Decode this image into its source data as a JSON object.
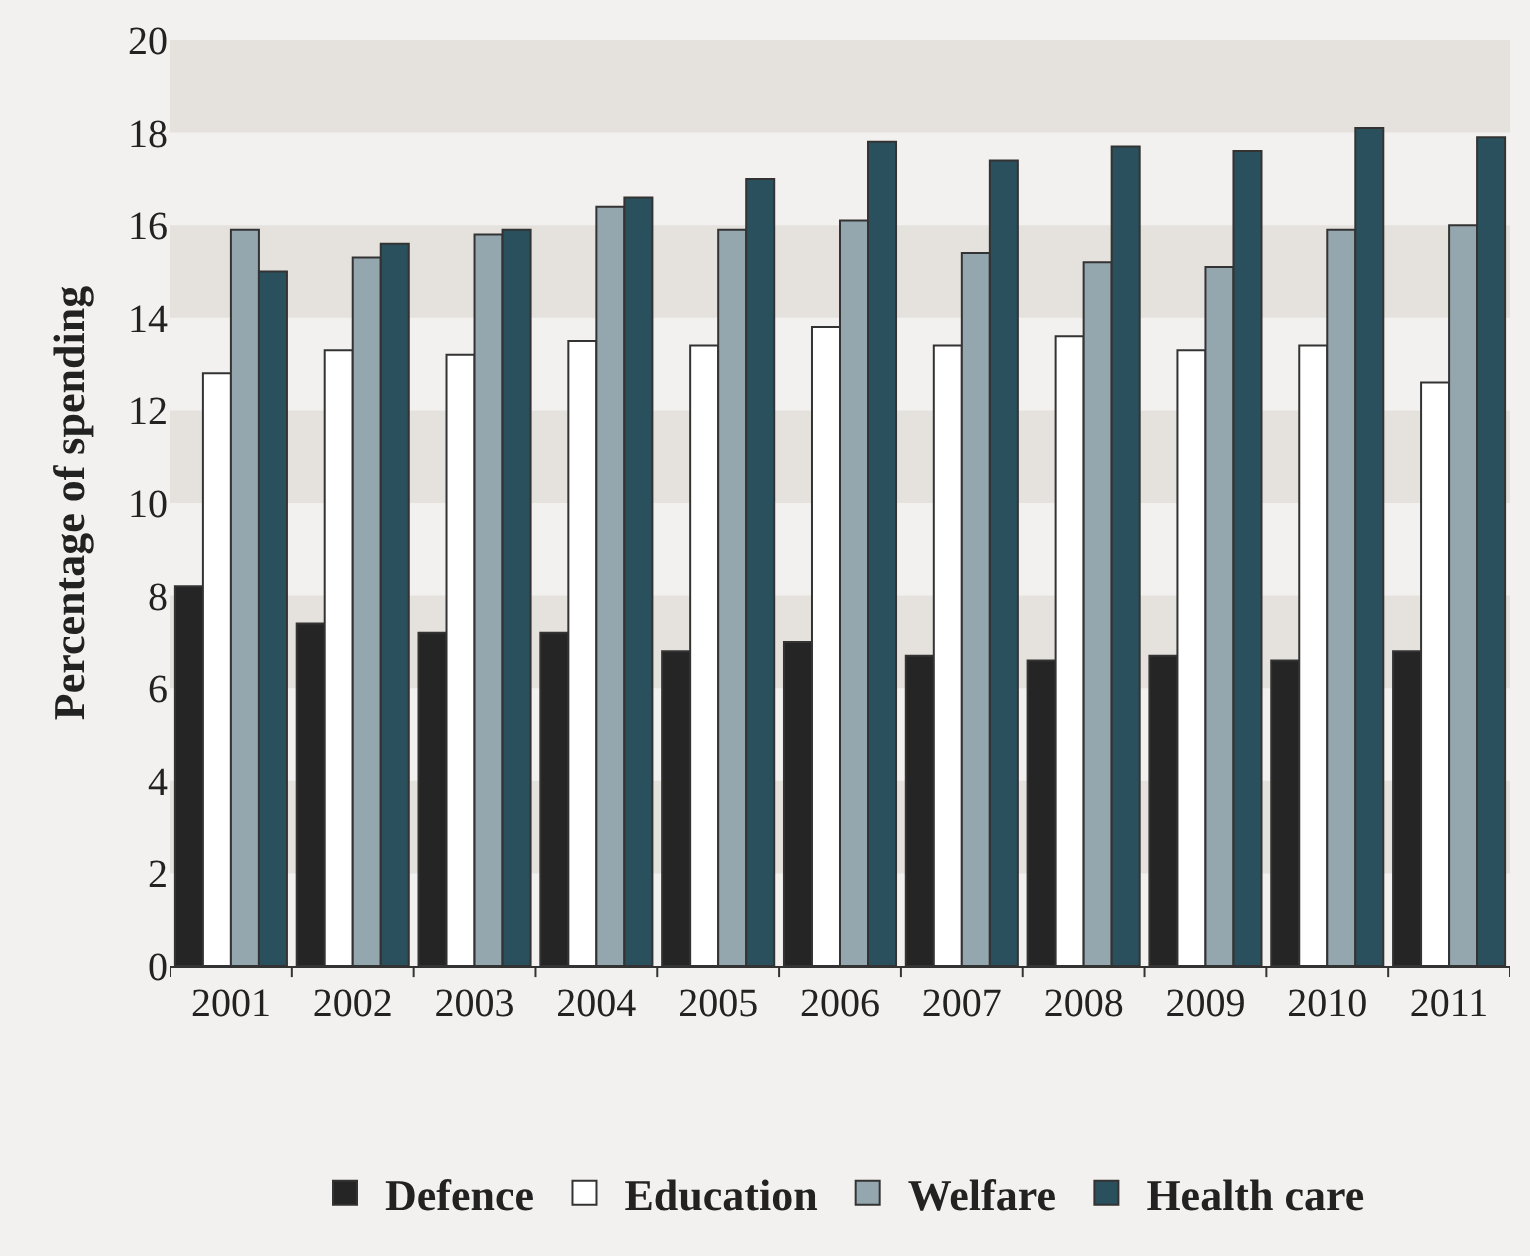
{
  "chart_data": {
    "type": "bar",
    "ylabel": "Percentage of spending",
    "categories": [
      "2001",
      "2002",
      "2003",
      "2004",
      "2005",
      "2006",
      "2007",
      "2008",
      "2009",
      "2010",
      "2011"
    ],
    "series": [
      {
        "name": "Defence",
        "color": "#252525",
        "values": [
          8.2,
          7.4,
          7.2,
          7.2,
          6.8,
          7.0,
          6.7,
          6.6,
          6.7,
          6.6,
          6.8
        ]
      },
      {
        "name": "Education",
        "color": "#ffffff",
        "values": [
          12.8,
          13.3,
          13.2,
          13.5,
          13.4,
          13.8,
          13.4,
          13.6,
          13.3,
          13.4,
          12.6
        ]
      },
      {
        "name": "Welfare",
        "color": "#94a7af",
        "values": [
          15.9,
          15.3,
          15.8,
          16.4,
          15.9,
          16.1,
          15.4,
          15.2,
          15.1,
          15.9,
          16.0
        ]
      },
      {
        "name": "Health care",
        "color": "#2a505d",
        "values": [
          15.0,
          15.6,
          15.9,
          16.6,
          17.0,
          17.8,
          17.4,
          17.7,
          17.6,
          18.1,
          17.9
        ]
      }
    ],
    "ylim": [
      0,
      20
    ],
    "yticks": [
      0,
      2,
      4,
      6,
      8,
      10,
      12,
      14,
      16,
      18,
      20
    ],
    "legend": "bottom",
    "bands": [
      {
        "axis": "y",
        "from": 2,
        "to": 4,
        "color": "#e5e2de"
      },
      {
        "axis": "y",
        "from": 6,
        "to": 8,
        "color": "#e5e2de"
      },
      {
        "axis": "y",
        "from": 10,
        "to": 12,
        "color": "#e5e2de"
      },
      {
        "axis": "y",
        "from": 14,
        "to": 16,
        "color": "#e5e2de"
      },
      {
        "axis": "y",
        "from": 18,
        "to": 20,
        "color": "#e5e2de"
      }
    ]
  }
}
